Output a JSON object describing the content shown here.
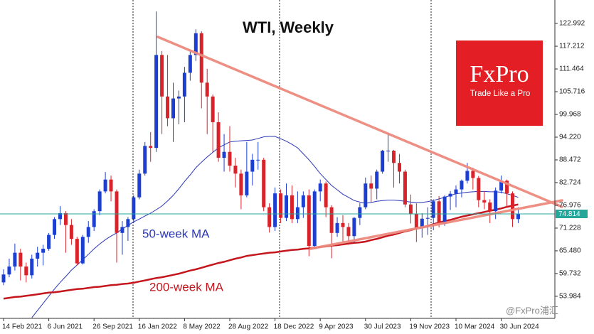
{
  "chart_data": {
    "type": "candlestick",
    "title": "WTI, Weekly",
    "categories": [
      "14 Feb 2021",
      null,
      null,
      null,
      null,
      null,
      null,
      null,
      "6 Jun 2021",
      null,
      null,
      null,
      null,
      null,
      null,
      null,
      "26 Sep 2021",
      null,
      null,
      null,
      null,
      null,
      null,
      null,
      "16 Jan 2022",
      null,
      null,
      null,
      null,
      null,
      null,
      null,
      "8 May 2022",
      null,
      null,
      null,
      null,
      null,
      null,
      null,
      "28 Aug 2022",
      null,
      null,
      null,
      null,
      null,
      null,
      null,
      "18 Dec 2022",
      null,
      null,
      null,
      null,
      null,
      null,
      null,
      "9 Apr 2023",
      null,
      null,
      null,
      null,
      null,
      null,
      null,
      "30 Jul 2023",
      null,
      null,
      null,
      null,
      null,
      null,
      null,
      "19 Nov 2023",
      null,
      null,
      null,
      null,
      null,
      null,
      null,
      "10 Mar 2024",
      null,
      null,
      null,
      null,
      null,
      null,
      null,
      "30 Jun 2024",
      null,
      null,
      null
    ],
    "ohlc": [
      [
        57.5,
        60.8,
        56.8,
        59.5
      ],
      [
        59.5,
        63.5,
        58.8,
        61.5
      ],
      [
        61.5,
        67.3,
        60.5,
        65
      ],
      [
        65,
        66,
        58,
        61.5
      ],
      [
        61.5,
        62.5,
        57.5,
        59.3
      ],
      [
        59.3,
        64.5,
        58.5,
        63.5
      ],
      [
        63.5,
        66.5,
        61.5,
        65
      ],
      [
        65,
        67,
        61.8,
        66
      ],
      [
        66,
        70,
        65.5,
        69.5
      ],
      [
        69.5,
        74,
        68.5,
        73.5
      ],
      [
        73.5,
        76.8,
        72,
        75
      ],
      [
        75,
        75.5,
        65,
        72
      ],
      [
        72,
        73.5,
        67,
        68.5
      ],
      [
        68.5,
        69,
        61.8,
        62.3
      ],
      [
        62.3,
        69.5,
        62,
        69
      ],
      [
        69,
        73,
        67.5,
        71.5
      ],
      [
        71.5,
        76,
        70.5,
        75.5
      ],
      [
        75.5,
        81,
        74.5,
        80.5
      ],
      [
        80.5,
        85.4,
        80,
        83.5
      ],
      [
        83.5,
        84.5,
        78,
        80.5
      ],
      [
        80.5,
        81,
        62.5,
        70
      ],
      [
        70,
        73,
        64.5,
        71.5
      ],
      [
        71.5,
        74,
        68,
        73.5
      ],
      [
        73.5,
        79.5,
        72.5,
        79
      ],
      [
        79,
        86,
        78.5,
        85
      ],
      [
        85,
        93,
        84.5,
        92
      ],
      [
        92,
        95.5,
        88,
        91.5
      ],
      [
        91.5,
        126,
        90.5,
        115
      ],
      [
        115,
        116,
        95,
        104.5
      ],
      [
        104.5,
        115,
        97,
        99
      ],
      [
        99,
        108,
        93,
        104
      ],
      [
        104,
        106,
        97.5,
        104.5
      ],
      [
        104.5,
        112,
        98,
        110.5
      ],
      [
        110.5,
        116,
        108.5,
        115
      ],
      [
        115,
        121.5,
        113.5,
        120.5
      ],
      [
        120.5,
        121,
        101.5,
        108
      ],
      [
        108,
        111.5,
        95,
        104.5
      ],
      [
        104.5,
        105,
        90.5,
        98
      ],
      [
        98,
        100.5,
        88,
        89
      ],
      [
        89,
        95,
        85.5,
        90.5
      ],
      [
        90.5,
        97,
        85.5,
        87
      ],
      [
        87,
        89,
        81.5,
        85
      ],
      [
        85,
        86,
        76,
        79.5
      ],
      [
        79.5,
        93,
        79,
        85.5
      ],
      [
        85.5,
        90,
        82,
        88.5
      ],
      [
        88.5,
        93,
        86,
        88.5
      ],
      [
        88.5,
        89,
        75.5,
        76.5
      ],
      [
        76.5,
        77.5,
        70.1,
        71.5
      ],
      [
        71.5,
        81.5,
        70.5,
        80
      ],
      [
        80,
        81,
        72.5,
        73.8
      ],
      [
        73.8,
        82.5,
        73,
        79.5
      ],
      [
        79.5,
        82,
        72.5,
        73.5
      ],
      [
        73.5,
        80.5,
        72.5,
        76.5
      ],
      [
        76.5,
        80.5,
        73.8,
        79.5
      ],
      [
        79.5,
        81,
        64.1,
        66.7
      ],
      [
        66.7,
        81,
        66,
        80.5
      ],
      [
        80.5,
        83.5,
        78,
        82.5
      ],
      [
        82.5,
        83,
        74,
        76.5
      ],
      [
        76.5,
        77,
        63.6,
        70
      ],
      [
        70,
        74,
        69,
        72.5
      ],
      [
        72.5,
        74.5,
        67.5,
        71.5
      ],
      [
        71.5,
        72.5,
        67,
        69.2
      ],
      [
        69.2,
        74,
        67.5,
        73.8
      ],
      [
        73.8,
        77.5,
        72,
        76.5
      ],
      [
        76.5,
        84,
        76,
        82.5
      ],
      [
        82.5,
        84.5,
        77.8,
        81.2
      ],
      [
        81.2,
        86,
        78.5,
        85.5
      ],
      [
        85.5,
        91,
        85,
        90.8
      ],
      [
        90.8,
        95,
        88,
        90.8
      ],
      [
        90.8,
        91,
        81.5,
        87.7
      ],
      [
        87.7,
        90,
        82.5,
        85.5
      ],
      [
        85.5,
        86,
        76.5,
        77.2
      ],
      [
        77.2,
        79.7,
        72.4,
        74.9
      ],
      [
        74.9,
        77.5,
        67.7,
        71.2
      ],
      [
        71.2,
        75,
        68.8,
        73.6
      ],
      [
        73.6,
        76.5,
        69.5,
        73.8
      ],
      [
        73.8,
        78.5,
        70.7,
        78
      ],
      [
        78,
        79.3,
        71.4,
        72.3
      ],
      [
        72.3,
        79.5,
        71.8,
        79.2
      ],
      [
        79.2,
        80.6,
        75.8,
        79.9
      ],
      [
        79.9,
        82,
        76.5,
        81
      ],
      [
        81,
        83.5,
        79,
        83.2
      ],
      [
        83.2,
        87.7,
        82.5,
        85.7
      ],
      [
        85.7,
        86.5,
        81,
        83.9
      ],
      [
        83.9,
        84.4,
        76.5,
        78.3
      ],
      [
        78.3,
        80.5,
        76,
        77.7
      ],
      [
        77.7,
        78.5,
        72.5,
        75.5
      ],
      [
        75.5,
        81.5,
        73.5,
        80.7
      ],
      [
        80.7,
        84.5,
        80,
        83.2
      ],
      [
        83.2,
        83.5,
        76.5,
        80
      ],
      [
        80,
        80.5,
        71.5,
        73.5
      ],
      [
        73.5,
        76.5,
        72.5,
        74.8
      ]
    ],
    "up_color": "#1c3fd1",
    "down_color": "#d9232a",
    "series": [
      {
        "name": "50-week MA",
        "color": "#2a35b8",
        "width": 1,
        "values": [
          null,
          null,
          null,
          null,
          null,
          48.6,
          50.4,
          52.2,
          54,
          55.8,
          57.5,
          59,
          60.6,
          61.9,
          63.2,
          64.6,
          66,
          67.2,
          68.3,
          69.2,
          70,
          71,
          71.9,
          72.8,
          73.5,
          74.3,
          75,
          75.9,
          76.8,
          78.1,
          79.5,
          81.2,
          83,
          84.7,
          86.5,
          87.9,
          89.2,
          90.4,
          91.5,
          92.3,
          93,
          93.2,
          93.3,
          93.4,
          93.5,
          93.9,
          94.3,
          94.4,
          94.4,
          93.8,
          93.2,
          92.4,
          91.5,
          90,
          88.5,
          86.8,
          85,
          83.5,
          82,
          80.9,
          79.8,
          79,
          78.2,
          77.8,
          77.5,
          77.7,
          78,
          78.2,
          78.3,
          78.3,
          78.2,
          78,
          77.8,
          77.7,
          77.7,
          77.9,
          78.2,
          78.6,
          79,
          79.5,
          79.9,
          80.1,
          80.3,
          80.4,
          80.5,
          80.5,
          80.4,
          80.4,
          80.3,
          79.9,
          79.5,
          79
        ]
      },
      {
        "name": "200-week MA",
        "color": "#c4161c",
        "width": 2.5,
        "values": [
          53.4,
          53.6,
          53.8,
          53.9,
          54.1,
          54.3,
          54.5,
          54.7,
          54.9,
          55,
          55.2,
          55.4,
          55.6,
          55.8,
          55.9,
          56.1,
          56.3,
          56.4,
          56.6,
          56.8,
          56.9,
          57.1,
          57.2,
          57.4,
          57.7,
          58,
          58.3,
          58.6,
          58.8,
          59.1,
          59.4,
          59.7,
          60.1,
          60.5,
          60.8,
          61.2,
          61.6,
          62,
          62.4,
          62.7,
          63.1,
          63.5,
          63.8,
          64.2,
          64.4,
          64.6,
          64.8,
          65,
          65.1,
          65.3,
          65.5,
          65.7,
          65.8,
          66,
          66.1,
          66.3,
          66.4,
          66.6,
          66.8,
          66.9,
          67.1,
          67.3,
          67.5,
          67.6,
          67.8,
          68.2,
          68.5,
          68.9,
          69.3,
          69.6,
          70,
          70.4,
          70.7,
          71.1,
          71.4,
          71.8,
          72.2,
          72.6,
          73,
          73.3,
          73.7,
          74.1,
          74.4,
          74.7,
          75,
          75.3,
          75.6,
          75.9,
          76.2,
          76.6,
          76.9,
          77.2
        ]
      }
    ],
    "last_price": 74.814,
    "last_price_color": "#26a69a",
    "ylim": [
      48.4,
      128.9
    ],
    "yticks": [
      122.992,
      117.212,
      111.464,
      105.716,
      99.968,
      {
        "value": 94.22,
        "label": "94.220"
      },
      88.472,
      82.724,
      76.976,
      71.228,
      {
        "value": 65.48,
        "label": "65.480"
      },
      59.732,
      53.984
    ],
    "logo": {
      "brand": "FxPro",
      "tagline": "Trade Like a Pro"
    },
    "watermark": "@FxPro浦汇"
  }
}
